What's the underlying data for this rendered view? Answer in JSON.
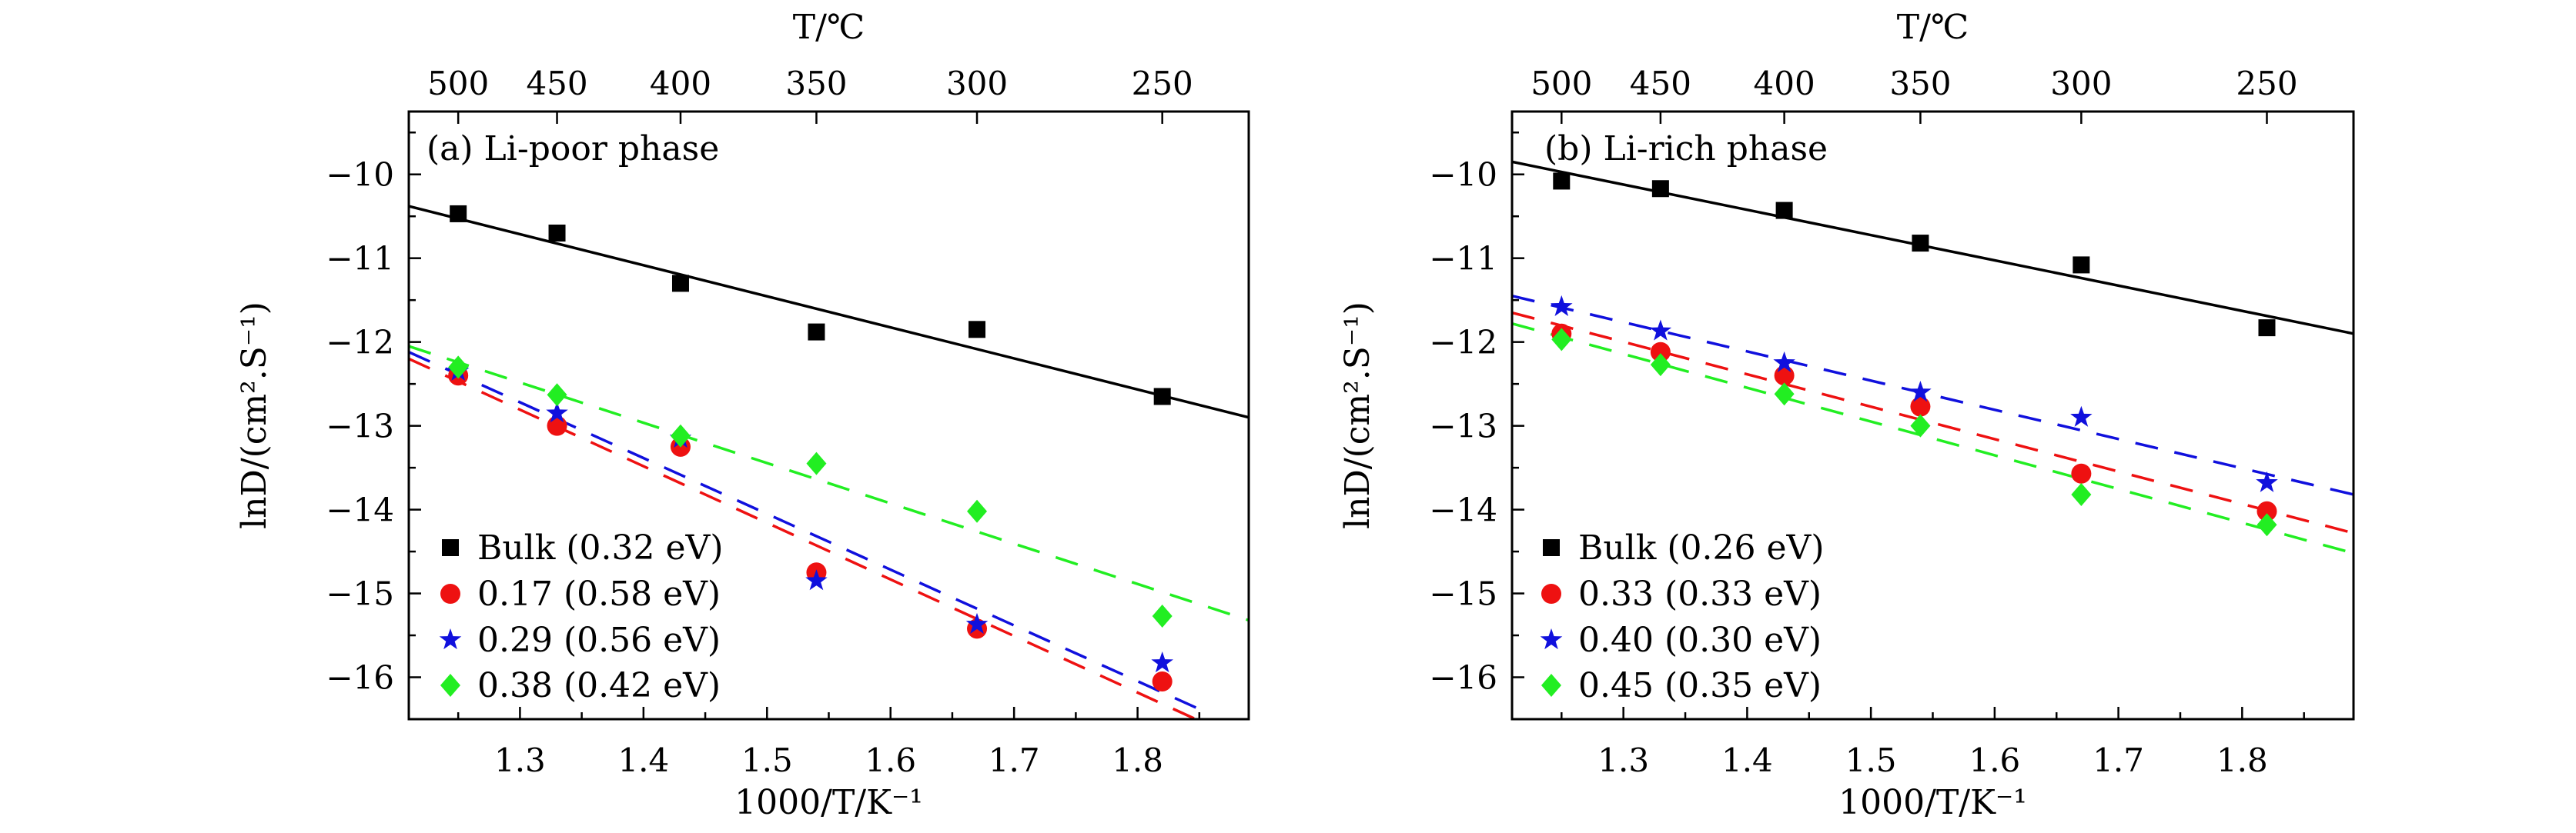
{
  "chart_data": [
    {
      "type": "scatter",
      "panel_label": "(a) Li-poor phase",
      "xlabel": "1000/T/K⁻¹",
      "ylabel": "lnD/(cm².S⁻¹)",
      "top_xlabel": "T/℃",
      "xlim": [
        1.21,
        1.89
      ],
      "ylim": [
        -16.5,
        -9.25
      ],
      "xticks": [
        1.3,
        1.4,
        1.5,
        1.6,
        1.7,
        1.8
      ],
      "xtick_labels": [
        "1.3",
        "1.4",
        "1.5",
        "1.6",
        "1.7",
        "1.8"
      ],
      "yticks": [
        -10,
        -11,
        -12,
        -13,
        -14,
        -15,
        -16
      ],
      "ytick_labels": [
        "−10",
        "−11",
        "−12",
        "−13",
        "−14",
        "−15",
        "−16"
      ],
      "top_ticks": [
        1.25,
        1.33,
        1.43,
        1.54,
        1.67,
        1.82
      ],
      "top_tick_labels": [
        "500",
        "450",
        "400",
        "350",
        "300",
        "250"
      ],
      "grid": false,
      "legend_placement": "bottom-left",
      "x": [
        1.25,
        1.33,
        1.43,
        1.54,
        1.67,
        1.82
      ],
      "series": [
        {
          "name": "Bulk (0.32 eV)",
          "marker": "square",
          "color": "#000000",
          "line_style": "solid",
          "values": [
            -10.47,
            -10.7,
            -11.3,
            -11.88,
            -11.85,
            -12.65
          ],
          "fit": [
            [
              1.21,
              -10.38
            ],
            [
              1.89,
              -12.9
            ]
          ]
        },
        {
          "name": "0.17 (0.58 eV)",
          "marker": "circle",
          "color": "#ee1111",
          "line_style": "dashed",
          "values": [
            -12.4,
            -13.0,
            -13.25,
            -14.75,
            -15.42,
            -16.05
          ],
          "fit": [
            [
              1.21,
              -12.2
            ],
            [
              1.85,
              -16.52
            ]
          ]
        },
        {
          "name": "0.29 (0.56 eV)",
          "marker": "star",
          "color": "#1010dd",
          "line_style": "dashed",
          "values": [
            -12.35,
            -12.85,
            -13.15,
            -14.85,
            -15.37,
            -15.83
          ],
          "fit": [
            [
              1.21,
              -12.12
            ],
            [
              1.85,
              -16.38
            ]
          ]
        },
        {
          "name": "0.38 (0.42 eV)",
          "marker": "diamond",
          "color": "#22ee22",
          "line_style": "dashed",
          "values": [
            -12.3,
            -12.63,
            -13.12,
            -13.45,
            -14.02,
            -15.27
          ],
          "fit": [
            [
              1.21,
              -12.05
            ],
            [
              1.89,
              -15.32
            ]
          ]
        }
      ]
    },
    {
      "type": "scatter",
      "panel_label": "(b) Li-rich phase",
      "xlabel": "1000/T/K⁻¹",
      "ylabel": "lnD/(cm².S⁻¹)",
      "top_xlabel": "T/℃",
      "xlim": [
        1.21,
        1.89
      ],
      "ylim": [
        -16.5,
        -9.25
      ],
      "xticks": [
        1.3,
        1.4,
        1.5,
        1.6,
        1.7,
        1.8
      ],
      "xtick_labels": [
        "1.3",
        "1.4",
        "1.5",
        "1.6",
        "1.7",
        "1.8"
      ],
      "yticks": [
        -10,
        -11,
        -12,
        -13,
        -14,
        -15,
        -16
      ],
      "ytick_labels": [
        "−10",
        "−11",
        "−12",
        "−13",
        "−14",
        "−15",
        "−16"
      ],
      "top_ticks": [
        1.25,
        1.33,
        1.43,
        1.54,
        1.67,
        1.82
      ],
      "top_tick_labels": [
        "500",
        "450",
        "400",
        "350",
        "300",
        "250"
      ],
      "grid": false,
      "legend_placement": "bottom-left",
      "x": [
        1.25,
        1.33,
        1.43,
        1.54,
        1.67,
        1.82
      ],
      "series": [
        {
          "name": "Bulk (0.26 eV)",
          "marker": "square",
          "color": "#000000",
          "line_style": "solid",
          "values": [
            -10.08,
            -10.17,
            -10.43,
            -10.82,
            -11.08,
            -11.83
          ],
          "fit": [
            [
              1.21,
              -9.85
            ],
            [
              1.89,
              -11.9
            ]
          ]
        },
        {
          "name": "0.33 (0.33 eV)",
          "marker": "circle",
          "color": "#ee1111",
          "line_style": "dashed",
          "values": [
            -11.9,
            -12.12,
            -12.4,
            -12.77,
            -13.57,
            -14.02
          ],
          "fit": [
            [
              1.21,
              -11.65
            ],
            [
              1.89,
              -14.28
            ]
          ]
        },
        {
          "name": "0.40 (0.30 eV)",
          "marker": "star",
          "color": "#1010dd",
          "line_style": "dashed",
          "values": [
            -11.58,
            -11.87,
            -12.25,
            -12.6,
            -12.9,
            -13.68
          ],
          "fit": [
            [
              1.21,
              -11.45
            ],
            [
              1.89,
              -13.82
            ]
          ]
        },
        {
          "name": "0.45 (0.35 eV)",
          "marker": "diamond",
          "color": "#22ee22",
          "line_style": "dashed",
          "values": [
            -11.97,
            -12.27,
            -12.62,
            -13.0,
            -13.82,
            -14.18
          ],
          "fit": [
            [
              1.21,
              -11.78
            ],
            [
              1.89,
              -14.52
            ]
          ]
        }
      ]
    }
  ]
}
